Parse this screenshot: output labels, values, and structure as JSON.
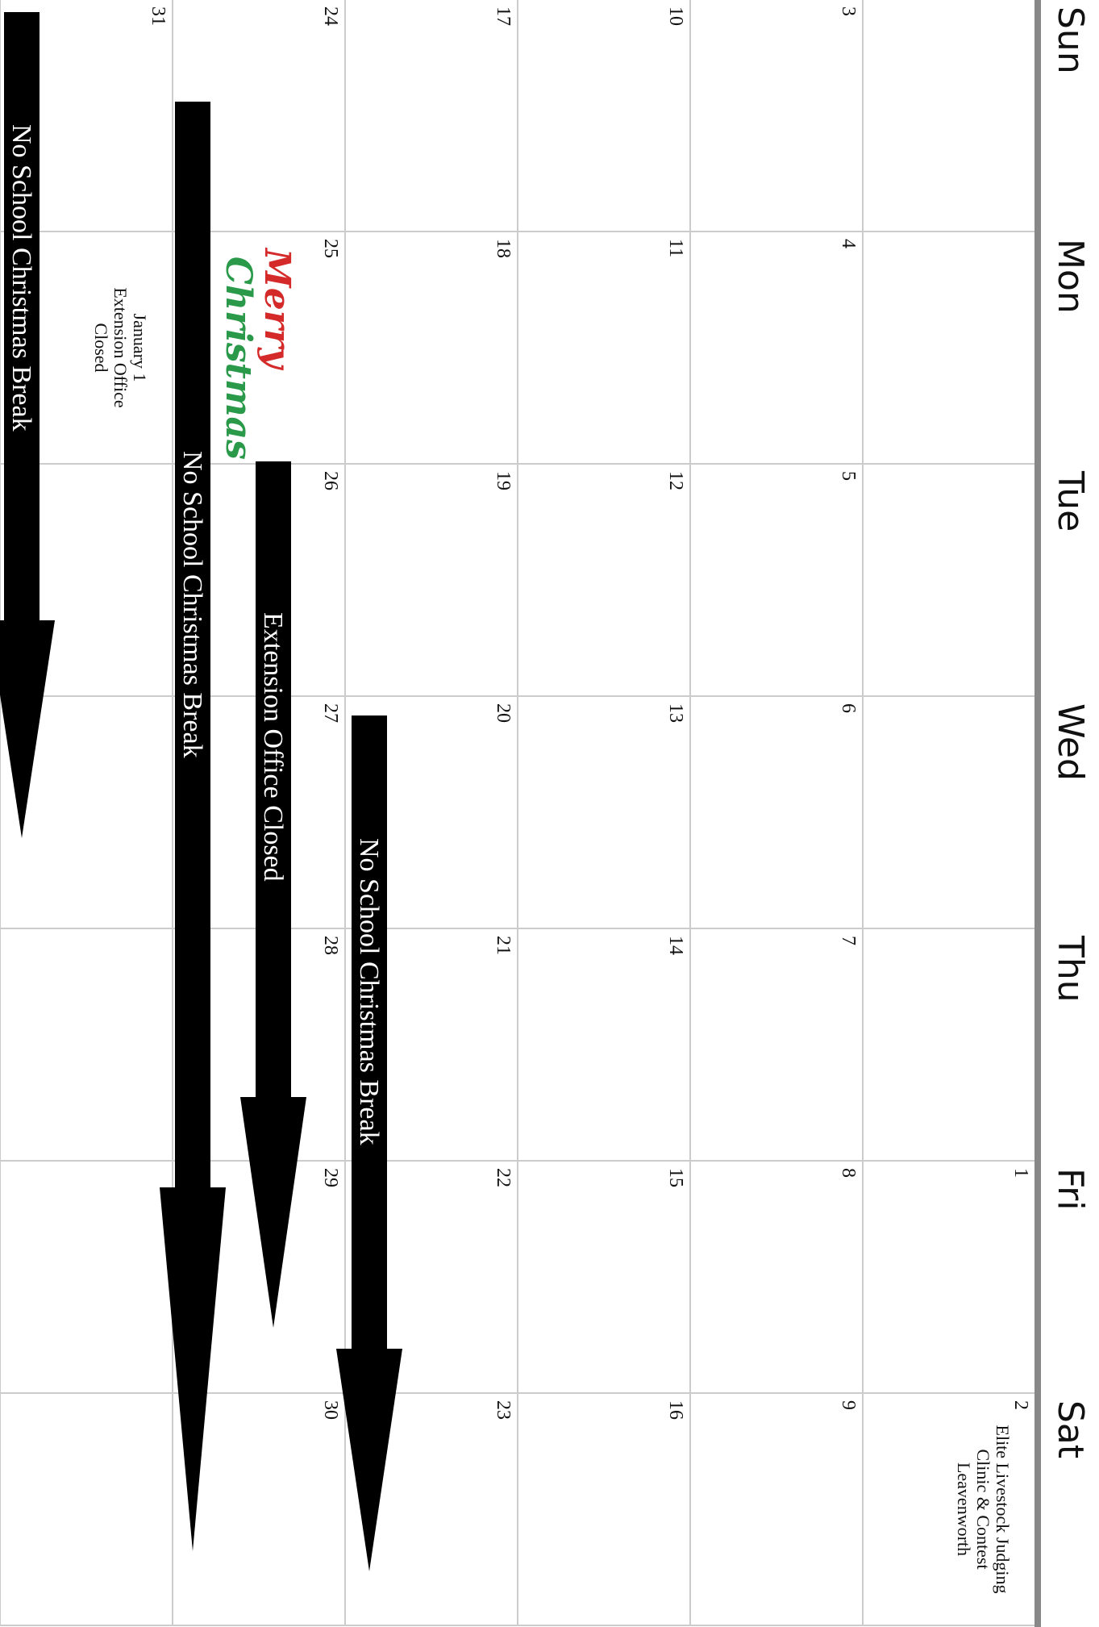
{
  "weekdays": [
    "Sun",
    "Mon",
    "Tue",
    "Wed",
    "Thu",
    "Fri",
    "Sat"
  ],
  "weeks": [
    {
      "days": [
        {
          "day": null
        },
        {
          "day": null
        },
        {
          "day": null
        },
        {
          "day": null
        },
        {
          "day": null
        },
        {
          "day": 1
        },
        {
          "day": 2,
          "event": [
            "Elite Livestock Judging",
            "Clinic & Contest",
            "Leavenworth"
          ]
        }
      ]
    },
    {
      "days": [
        {
          "day": 3
        },
        {
          "day": 4
        },
        {
          "day": 5
        },
        {
          "day": 6
        },
        {
          "day": 7
        },
        {
          "day": 8
        },
        {
          "day": 9
        }
      ]
    },
    {
      "days": [
        {
          "day": 10
        },
        {
          "day": 11
        },
        {
          "day": 12
        },
        {
          "day": 13
        },
        {
          "day": 14
        },
        {
          "day": 15
        },
        {
          "day": 16
        }
      ]
    },
    {
      "days": [
        {
          "day": 17
        },
        {
          "day": 18
        },
        {
          "day": 19
        },
        {
          "day": 20
        },
        {
          "day": 21
        },
        {
          "day": 22
        },
        {
          "day": 23
        }
      ],
      "banners": [
        "No School Christmas Break"
      ]
    },
    {
      "days": [
        {
          "day": 24
        },
        {
          "day": 25,
          "image": [
            "Merry",
            "Christmas"
          ]
        },
        {
          "day": 26
        },
        {
          "day": 27
        },
        {
          "day": 28
        },
        {
          "day": 29
        },
        {
          "day": 30
        }
      ],
      "banners": [
        "Extension Office Closed",
        "No School Christmas Break"
      ]
    },
    {
      "days": [
        {
          "day": 31
        },
        {
          "day": null,
          "event": [
            "January 1",
            "Extension Office",
            "Closed"
          ]
        },
        {
          "day": null
        },
        {
          "day": null
        },
        {
          "day": null
        },
        {
          "day": null
        },
        {
          "day": null
        }
      ],
      "banners": [
        "No School Christmas Break"
      ]
    }
  ]
}
